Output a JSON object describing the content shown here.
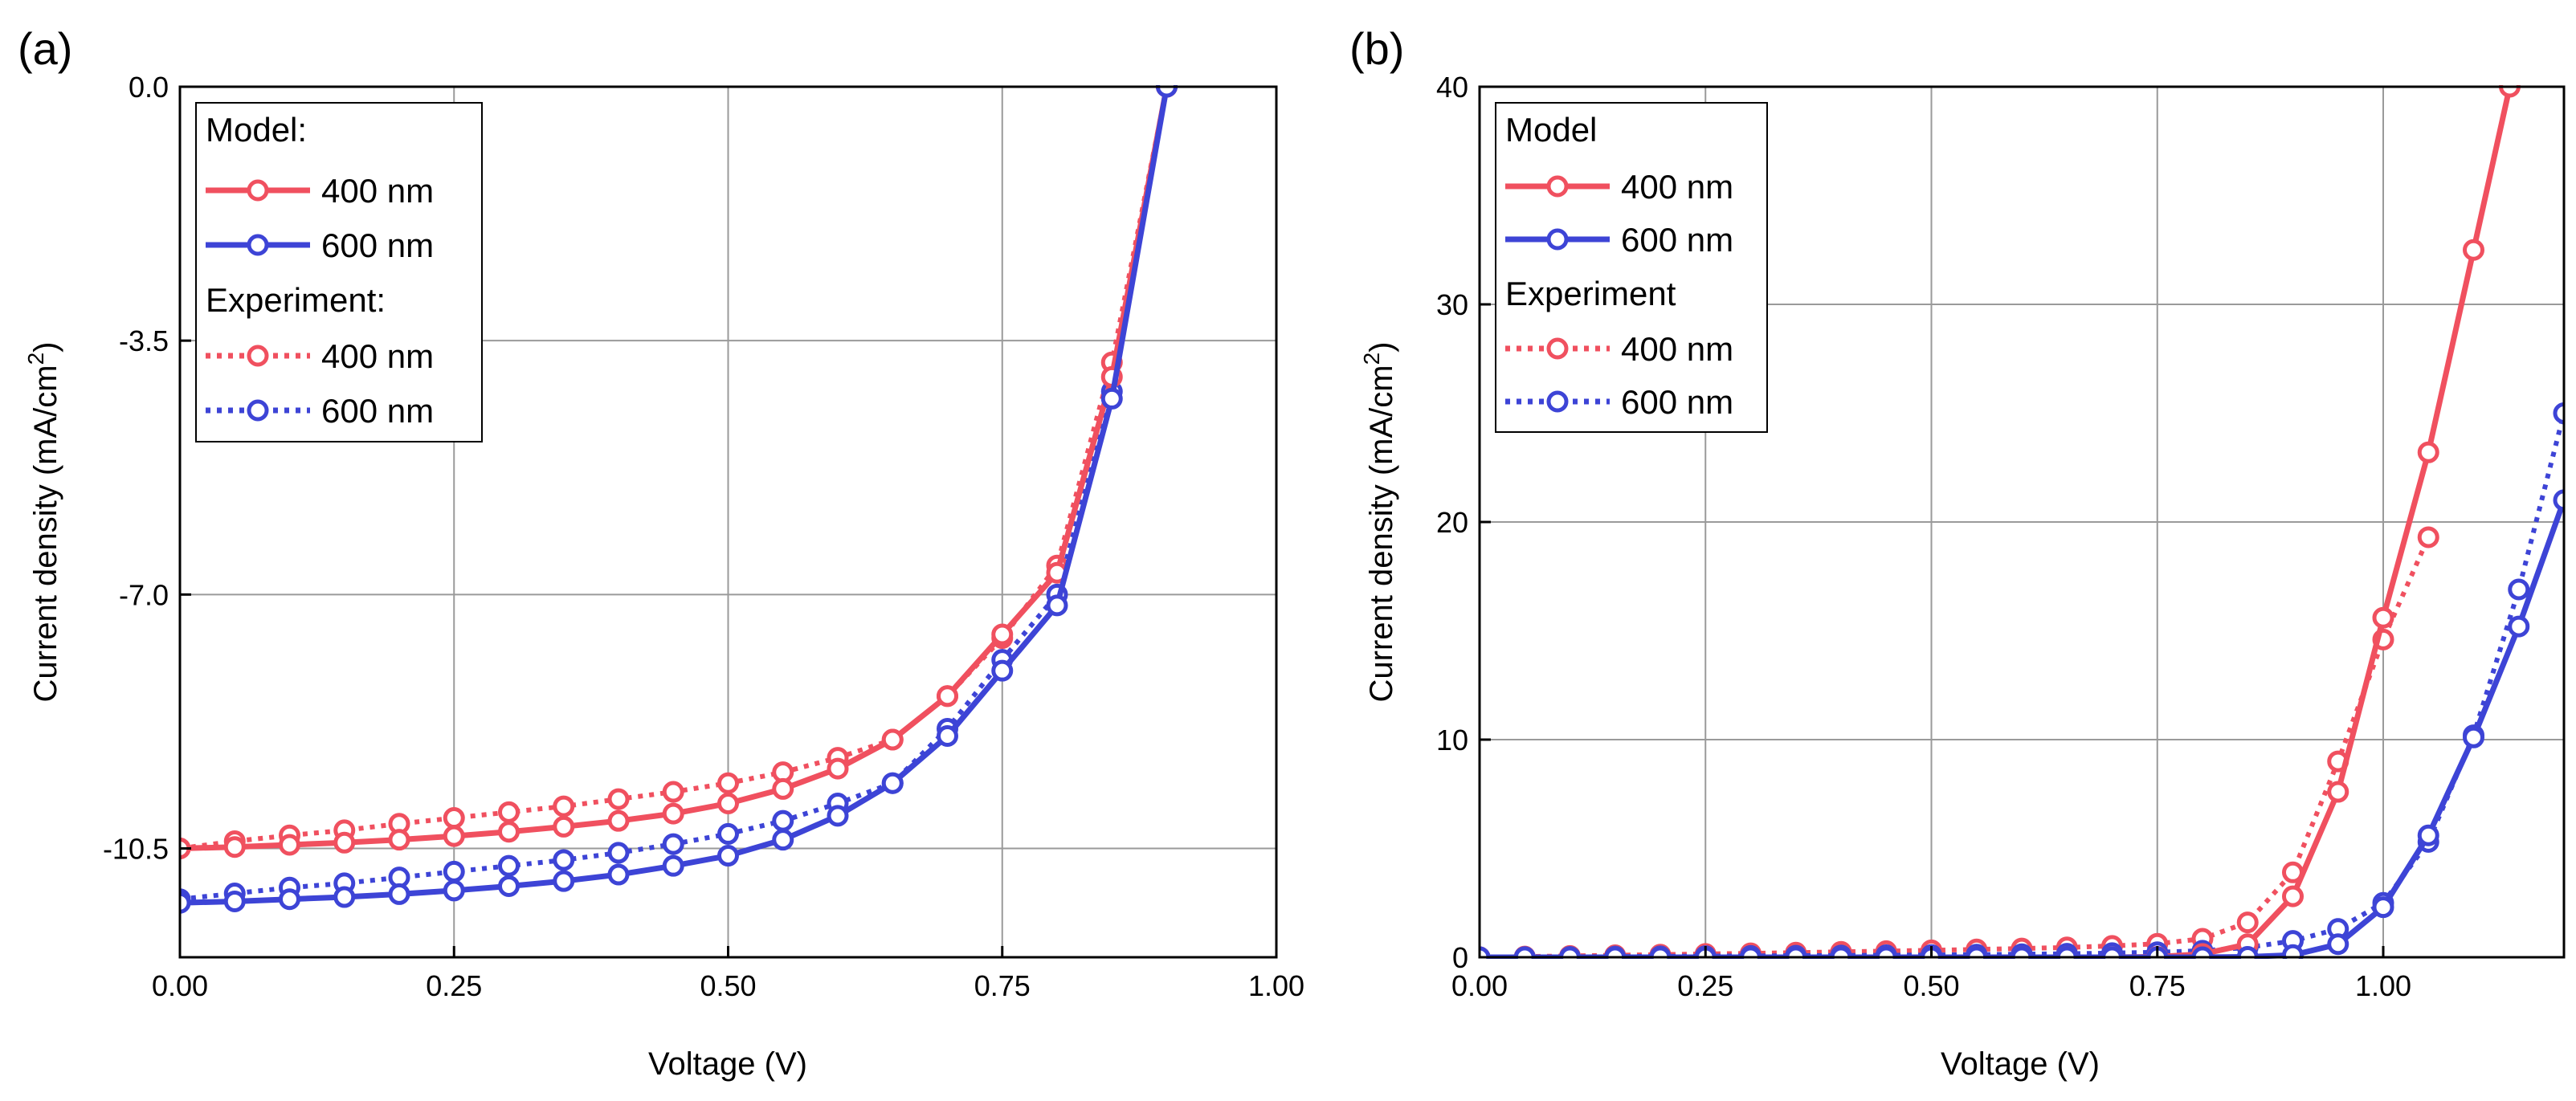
{
  "colors": {
    "red": "#f0505f",
    "blue": "#3d44d6"
  },
  "chart_data": [
    {
      "panel": "(a)",
      "type": "line",
      "xlabel": "Voltage (V)",
      "ylabel": "Current density (mA/cm",
      "ylabel_sup": "2",
      "ylabel_close": ")",
      "xlim": [
        0,
        1.0
      ],
      "ylim": [
        -12.0,
        0.0
      ],
      "grid": true,
      "xticks": [
        0.0,
        0.25,
        0.5,
        0.75,
        1.0
      ],
      "xtick_labels": [
        "0.00",
        "0.25",
        "0.50",
        "0.75",
        "1.00"
      ],
      "yticks": [
        0.0,
        -3.5,
        -7.0,
        -10.5
      ],
      "ytick_labels": [
        "0.0",
        "-3.5",
        "-7.0",
        "-10.5"
      ],
      "legend_position": "top-left",
      "legend": {
        "model_header": "Model:",
        "experiment_header": "Experiment:",
        "labels": [
          "400 nm",
          "600 nm",
          "400 nm",
          "600 nm"
        ]
      },
      "x": [
        0.0,
        0.05,
        0.1,
        0.15,
        0.2,
        0.25,
        0.3,
        0.35,
        0.4,
        0.45,
        0.5,
        0.55,
        0.6,
        0.65,
        0.7,
        0.75,
        0.8,
        0.85,
        0.9
      ],
      "series": [
        {
          "name": "Model 400 nm",
          "color": "red",
          "style": "solid",
          "values": [
            -10.5,
            -10.48,
            -10.45,
            -10.42,
            -10.38,
            -10.33,
            -10.27,
            -10.2,
            -10.12,
            -10.02,
            -9.88,
            -9.68,
            -9.4,
            -9.0,
            -8.4,
            -7.55,
            -6.7,
            -4.0,
            0.0
          ]
        },
        {
          "name": "Model 600 nm",
          "color": "blue",
          "style": "solid",
          "values": [
            -11.25,
            -11.23,
            -11.2,
            -11.17,
            -11.13,
            -11.08,
            -11.02,
            -10.95,
            -10.86,
            -10.74,
            -10.6,
            -10.38,
            -10.05,
            -9.6,
            -8.95,
            -8.05,
            -7.15,
            -4.3,
            0.0
          ]
        },
        {
          "name": "Experiment 400 nm",
          "color": "red",
          "style": "dotted",
          "values": [
            -10.5,
            -10.4,
            -10.32,
            -10.25,
            -10.16,
            -10.08,
            -10.0,
            -9.92,
            -9.82,
            -9.72,
            -9.6,
            -9.45,
            -9.25,
            -9.0,
            -8.4,
            -7.6,
            -6.6,
            -3.8,
            0.0
          ]
        },
        {
          "name": "Experiment 600 nm",
          "color": "blue",
          "style": "dotted",
          "values": [
            -11.2,
            -11.12,
            -11.04,
            -10.98,
            -10.9,
            -10.82,
            -10.74,
            -10.66,
            -10.56,
            -10.44,
            -10.3,
            -10.12,
            -9.88,
            -9.6,
            -8.85,
            -7.9,
            -7.0,
            -4.2,
            0.0
          ]
        }
      ]
    },
    {
      "panel": "(b)",
      "type": "line",
      "xlabel": "Voltage (V)",
      "ylabel": "Current density (mA/cm",
      "ylabel_sup": "2",
      "ylabel_close": ")",
      "xlim": [
        0,
        1.2
      ],
      "ylim": [
        0,
        40
      ],
      "grid": true,
      "xticks": [
        0.0,
        0.25,
        0.5,
        0.75,
        1.0
      ],
      "xtick_labels": [
        "0.00",
        "0.25",
        "0.50",
        "0.75",
        "1.00"
      ],
      "yticks": [
        0,
        10,
        20,
        30,
        40
      ],
      "ytick_labels": [
        "0",
        "10",
        "20",
        "30",
        "40"
      ],
      "legend_position": "top-left",
      "legend": {
        "model_header": "Model",
        "experiment_header": "Experiment",
        "labels": [
          "400 nm",
          "600 nm",
          "400 nm",
          "600 nm"
        ]
      },
      "series": [
        {
          "name": "Model 400 nm",
          "color": "red",
          "style": "solid",
          "x": [
            0.0,
            0.05,
            0.1,
            0.15,
            0.2,
            0.25,
            0.3,
            0.35,
            0.4,
            0.45,
            0.5,
            0.55,
            0.6,
            0.65,
            0.7,
            0.75,
            0.8,
            0.85,
            0.9,
            0.95,
            1.0,
            1.05,
            1.1,
            1.14
          ],
          "values": [
            0,
            0,
            0,
            0,
            0,
            0,
            0,
            0,
            0,
            0,
            0,
            0,
            0,
            0,
            0,
            0.02,
            0.15,
            0.6,
            2.8,
            7.6,
            15.6,
            23.2,
            32.5,
            40.0
          ]
        },
        {
          "name": "Model 600 nm",
          "color": "blue",
          "style": "solid",
          "x": [
            0.0,
            0.05,
            0.1,
            0.15,
            0.2,
            0.25,
            0.3,
            0.35,
            0.4,
            0.45,
            0.5,
            0.55,
            0.6,
            0.65,
            0.7,
            0.75,
            0.8,
            0.85,
            0.9,
            0.95,
            1.0,
            1.05,
            1.1,
            1.15,
            1.2
          ],
          "values": [
            0,
            0,
            0,
            0,
            0,
            0,
            0,
            0,
            0,
            0,
            0,
            0,
            0,
            0,
            0,
            0,
            0,
            0.02,
            0.1,
            0.6,
            2.3,
            5.6,
            10.1,
            15.2,
            21.0
          ]
        },
        {
          "name": "Experiment 400 nm",
          "color": "red",
          "style": "dotted",
          "x": [
            0.0,
            0.05,
            0.1,
            0.15,
            0.2,
            0.25,
            0.3,
            0.35,
            0.4,
            0.45,
            0.5,
            0.55,
            0.6,
            0.65,
            0.7,
            0.75,
            0.8,
            0.85,
            0.9,
            0.95,
            1.0,
            1.05
          ],
          "values": [
            0,
            0.03,
            0.06,
            0.09,
            0.12,
            0.15,
            0.18,
            0.21,
            0.25,
            0.28,
            0.32,
            0.36,
            0.4,
            0.45,
            0.52,
            0.62,
            0.85,
            1.6,
            3.9,
            9.0,
            14.6,
            19.3
          ]
        },
        {
          "name": "Experiment 600 nm",
          "color": "blue",
          "style": "dotted",
          "x": [
            0.0,
            0.05,
            0.1,
            0.15,
            0.2,
            0.25,
            0.3,
            0.35,
            0.4,
            0.45,
            0.5,
            0.55,
            0.6,
            0.65,
            0.7,
            0.75,
            0.8,
            0.85,
            0.9,
            0.95,
            1.0,
            1.05,
            1.1,
            1.15,
            1.2
          ],
          "values": [
            0,
            0.01,
            0.02,
            0.03,
            0.04,
            0.05,
            0.06,
            0.07,
            0.08,
            0.09,
            0.1,
            0.12,
            0.14,
            0.16,
            0.19,
            0.23,
            0.3,
            0.45,
            0.75,
            1.3,
            2.5,
            5.3,
            10.2,
            16.9,
            25.0
          ]
        }
      ]
    }
  ]
}
